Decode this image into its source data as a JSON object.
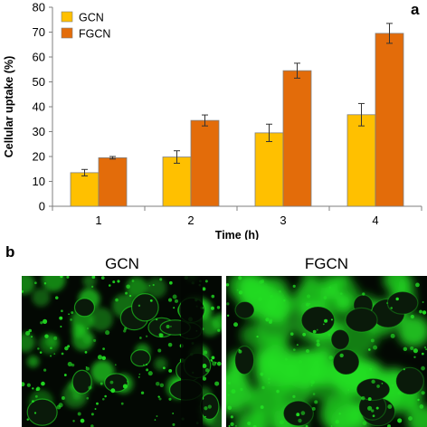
{
  "panels": {
    "a": "a",
    "b": "b"
  },
  "chart_data": {
    "type": "bar",
    "title": "",
    "xlabel": "Time (h)",
    "ylabel": "Cellular uptake (%)",
    "ylim": [
      0,
      80
    ],
    "yticks": [
      0,
      10,
      20,
      30,
      40,
      50,
      60,
      70,
      80
    ],
    "categories": [
      "1",
      "2",
      "3",
      "4"
    ],
    "legend_position": "top-left",
    "grid": false,
    "series": [
      {
        "name": "GCN",
        "color": "#FFC000",
        "values": [
          13.5,
          19.8,
          29.5,
          36.8
        ],
        "errors": [
          1.3,
          2.5,
          3.5,
          4.5
        ]
      },
      {
        "name": "FGCN",
        "color": "#E36C0A",
        "values": [
          19.5,
          34.5,
          54.5,
          69.5
        ],
        "errors": [
          0.5,
          2.2,
          3.0,
          4.0
        ]
      }
    ]
  },
  "images": {
    "gcn_title": "GCN",
    "fgcn_title": "FGCN",
    "stain_color": "#22DD22"
  }
}
